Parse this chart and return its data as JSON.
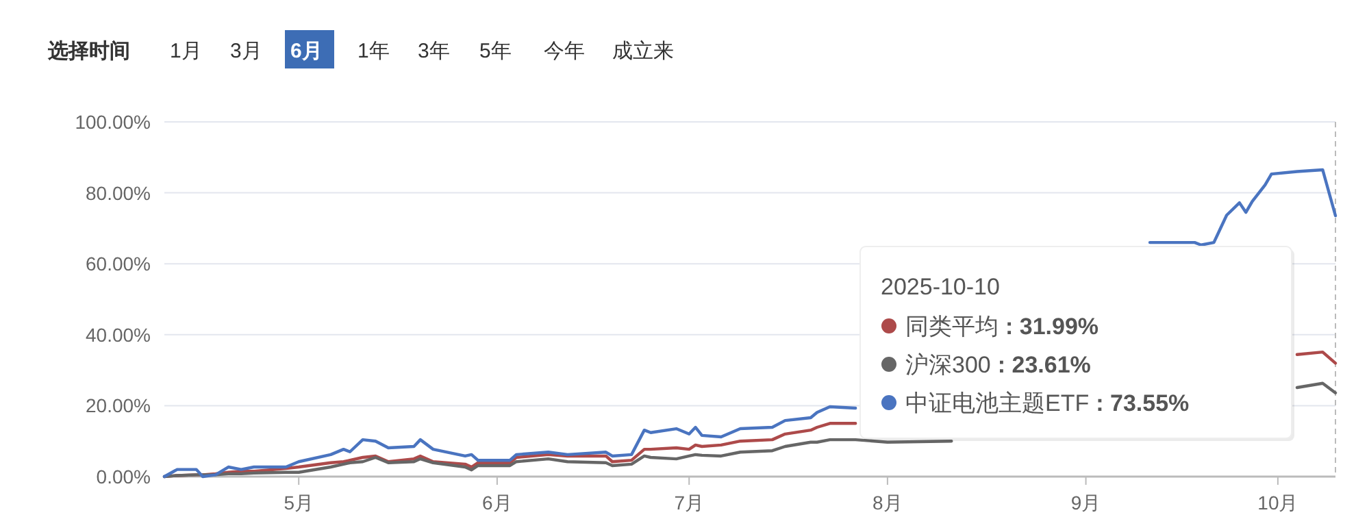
{
  "chart_data": {
    "type": "line",
    "x": [
      "2025-04-10",
      "2025-04-12",
      "2025-04-15",
      "2025-04-16",
      "2025-04-18",
      "2025-04-20",
      "2025-04-22",
      "2025-04-24",
      "2025-04-29",
      "2025-05-01",
      "2025-05-06",
      "2025-05-08",
      "2025-05-09",
      "2025-05-11",
      "2025-05-13",
      "2025-05-15",
      "2025-05-19",
      "2025-05-20",
      "2025-05-22",
      "2025-05-27",
      "2025-05-28",
      "2025-05-29",
      "2025-06-03",
      "2025-06-04",
      "2025-06-09",
      "2025-06-12",
      "2025-06-18",
      "2025-06-19",
      "2025-06-22",
      "2025-06-24",
      "2025-06-25",
      "2025-06-29",
      "2025-07-01",
      "2025-07-02",
      "2025-07-03",
      "2025-07-06",
      "2025-07-09",
      "2025-07-14",
      "2025-07-16",
      "2025-07-20",
      "2025-07-21",
      "2025-07-23",
      "2025-07-27",
      "2025-08-01",
      "2025-08-11",
      "2025-09-11",
      "2025-09-18",
      "2025-09-19",
      "2025-09-21",
      "2025-09-23",
      "2025-09-25",
      "2025-09-26",
      "2025-09-27",
      "2025-09-29",
      "2025-09-30",
      "2025-10-04",
      "2025-10-08",
      "2025-10-10"
    ],
    "series": [
      {
        "name": "同类平均",
        "color": "#ad4a4a",
        "values": [
          0,
          0.3,
          0.5,
          0.5,
          0.8,
          1.2,
          1.5,
          1.5,
          2.3,
          2.7,
          3.9,
          4.2,
          4.6,
          5.4,
          5.8,
          4.2,
          5,
          5.8,
          4.2,
          3.5,
          2.7,
          3.9,
          3.9,
          5.4,
          6.2,
          5.8,
          5.8,
          4.2,
          4.6,
          7.7,
          7.7,
          8.1,
          7.7,
          8.9,
          8.5,
          8.9,
          10,
          10.4,
          12,
          13.1,
          13.9,
          15,
          15,
          null,
          null,
          null,
          null,
          null,
          null,
          null,
          null,
          null,
          null,
          null,
          null,
          34.4,
          35.1,
          31.99
        ]
      },
      {
        "name": "沪深300",
        "color": "#666666",
        "values": [
          0,
          0.3,
          0.5,
          0.5,
          0.5,
          0.8,
          0.8,
          1,
          1.2,
          1.2,
          2.7,
          3.5,
          3.9,
          4.2,
          5.4,
          3.9,
          4.2,
          5,
          3.9,
          2.7,
          1.9,
          3.1,
          3.1,
          4.2,
          5,
          4.2,
          3.9,
          3.1,
          3.5,
          5.8,
          5.4,
          5,
          5.8,
          6.2,
          6,
          5.8,
          6.9,
          7.3,
          8.5,
          9.7,
          9.7,
          10.4,
          10.4,
          9.7,
          10,
          null,
          null,
          null,
          null,
          null,
          null,
          null,
          null,
          null,
          null,
          25.1,
          26.3,
          23.61
        ]
      },
      {
        "name": "中证电池主题ETF",
        "color": "#4a74c0",
        "values": [
          0,
          2,
          2,
          0,
          0.5,
          2.7,
          2,
          2.7,
          2.7,
          4.2,
          6.2,
          7.7,
          7,
          10.4,
          10,
          8.1,
          8.5,
          10.4,
          7.7,
          5.8,
          6.2,
          4.6,
          4.6,
          6.2,
          6.9,
          6.2,
          6.9,
          5.8,
          6.2,
          13.1,
          12.4,
          13.5,
          12,
          13.9,
          11.6,
          11.2,
          13.5,
          13.9,
          15.8,
          16.6,
          18.1,
          19.7,
          19.3,
          null,
          null,
          66,
          66,
          65.3,
          66,
          73.7,
          77.2,
          74.5,
          77.6,
          82.2,
          85.3,
          86,
          86.5,
          73.55
        ]
      }
    ],
    "xlim": [
      "2025-04-10",
      "2025-10-10"
    ],
    "xticks": [
      {
        "value": "2025-05-01",
        "label": "5月"
      },
      {
        "value": "2025-06-01",
        "label": "6月"
      },
      {
        "value": "2025-07-01",
        "label": "7月"
      },
      {
        "value": "2025-08-01",
        "label": "8月"
      },
      {
        "value": "2025-09-01",
        "label": "9月"
      },
      {
        "value": "2025-10-01",
        "label": "10月"
      }
    ],
    "ylim": [
      0,
      100
    ],
    "yticks": [
      {
        "value": 0,
        "label": "0.00%"
      },
      {
        "value": 20,
        "label": "20.00%"
      },
      {
        "value": 40,
        "label": "40.00%"
      },
      {
        "value": 60,
        "label": "60.00%"
      },
      {
        "value": 80,
        "label": "80.00%"
      },
      {
        "value": 100,
        "label": "100.00%"
      }
    ],
    "grid": "y",
    "legend": "bottom right",
    "marker": "none",
    "line_style": "solid",
    "ref_lines": [
      {
        "axis": "x",
        "value": "2025-10-10",
        "color": "#bbbbbb",
        "line_style": "dashed"
      }
    ],
    "annotations": [
      "选择时间",
      "1月",
      "3月",
      "6月",
      "1年",
      "3年",
      "5年",
      "今年",
      "成立来",
      "2025-10-10",
      ": 31.99%",
      ": 23.61%",
      ": 73.55%"
    ]
  }
}
